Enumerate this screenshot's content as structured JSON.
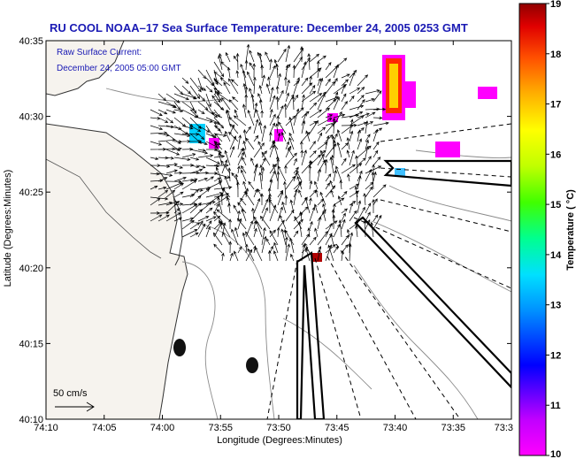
{
  "title": "RU COOL   NOAA–17  Sea Surface Temperature:  December 24, 2005 0253 GMT",
  "legend": {
    "line1": "Raw Surface Current:",
    "line2": "December 24, 2005 05:00 GMT"
  },
  "scale": {
    "label": "50 cm/s",
    "speed_cm_s": 50
  },
  "axes": {
    "xlabel": "Longitude (Degrees:Minutes)",
    "ylabel": "Latitude (Degrees:Minutes)",
    "xticks": [
      "74:10",
      "74:05",
      "74:00",
      "73:55",
      "73:50",
      "73:45",
      "73:40",
      "73:35",
      "73:3"
    ],
    "yticks": [
      "40:35",
      "40:30",
      "40:25",
      "40:20",
      "40:15",
      "40:10"
    ]
  },
  "colorbar": {
    "label": "Temperature ( °C)",
    "ticks": [
      "19",
      "18",
      "17",
      "16",
      "15",
      "14",
      "13",
      "12",
      "11",
      "10"
    ],
    "min": 10,
    "max": 19
  },
  "colors": {
    "title": "#1a1ab4",
    "land": "#f6f3ee",
    "ocean": "#ffffff"
  },
  "chart_data": {
    "type": "map",
    "xlim": [
      "74:10",
      "73:30"
    ],
    "ylim": [
      "40:10",
      "40:35"
    ],
    "variable": "Sea Surface Temperature (°C)",
    "overlay": "Raw Surface Current vectors"
  }
}
